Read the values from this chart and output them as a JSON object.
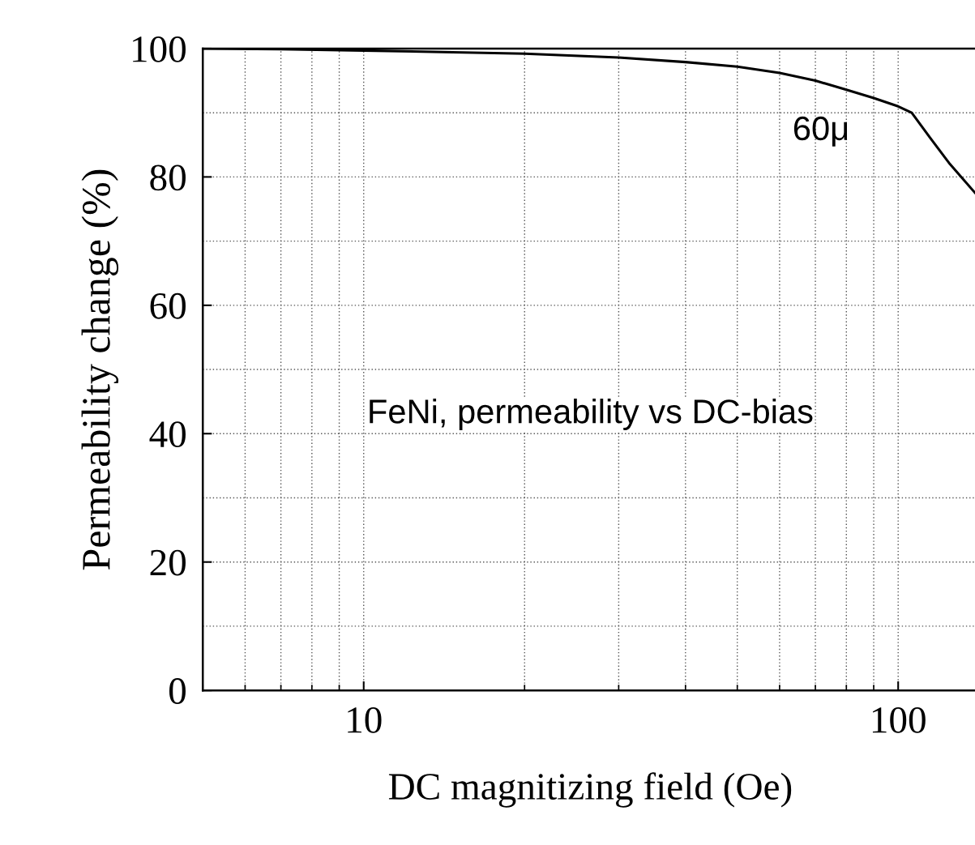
{
  "chart_data": {
    "type": "line",
    "xlabel": "DC magnitizing field (Oe)",
    "ylabel": "Permeability change (%)",
    "log": "x",
    "xlim": [
      5,
      141
    ],
    "xticks": [
      10,
      100
    ],
    "ylim": [
      0,
      100
    ],
    "yticks": [
      0,
      20,
      40,
      60,
      80,
      100
    ],
    "grid": true,
    "marker": "none",
    "line_style": "solid",
    "series": [
      {
        "name": "60μ",
        "color": "#000000",
        "x": [
          5,
          7,
          10,
          20,
          30,
          40,
          50,
          60,
          70,
          80,
          90,
          100,
          106,
          115,
          125,
          141
        ],
        "values": [
          100,
          99.9,
          99.7,
          99.2,
          98.6,
          97.9,
          97.2,
          96.2,
          95,
          93.6,
          92.3,
          91,
          90,
          86,
          82,
          77
        ]
      }
    ],
    "annotations": [
      "FeNi, permeability vs DC-bias"
    ]
  }
}
